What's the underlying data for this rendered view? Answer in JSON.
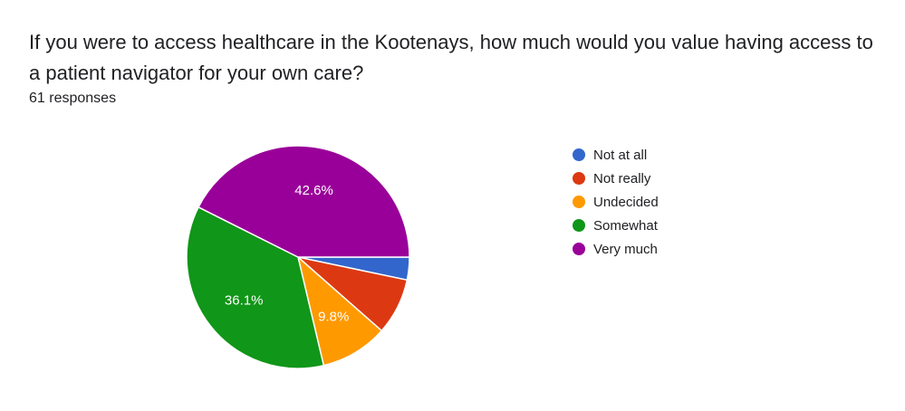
{
  "question": {
    "title": "If you were to access healthcare in the Kootenays, how much would you value having access to a patient navigator for your own care?",
    "responses": "61 responses"
  },
  "chart_data": {
    "type": "pie",
    "categories": [
      "Not at all",
      "Not really",
      "Undecided",
      "Somewhat",
      "Very much"
    ],
    "values": [
      3.3,
      8.2,
      9.8,
      36.1,
      42.6
    ],
    "colors": [
      "#3366cc",
      "#dc3912",
      "#ff9900",
      "#109618",
      "#990099"
    ],
    "data_labels": [
      "",
      "",
      "9.8%",
      "36.1%",
      "42.6%"
    ],
    "legend_position": "right"
  }
}
